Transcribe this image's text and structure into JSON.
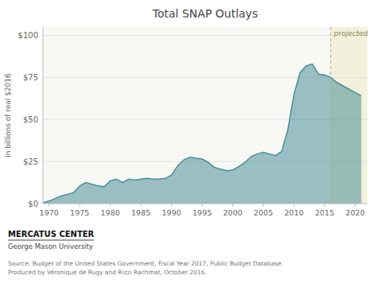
{
  "chart_data": {
    "type": "area",
    "title": "Total SNAP Outlays",
    "y_label": "in billions of real $2016",
    "x": [
      1969,
      1970,
      1971,
      1972,
      1973,
      1974,
      1975,
      1976,
      1977,
      1978,
      1979,
      1980,
      1981,
      1982,
      1983,
      1984,
      1985,
      1986,
      1987,
      1988,
      1989,
      1990,
      1991,
      1992,
      1993,
      1994,
      1995,
      1996,
      1997,
      1998,
      1999,
      2000,
      2001,
      2002,
      2003,
      2004,
      2005,
      2006,
      2007,
      2008,
      2009,
      2010,
      2011,
      2012,
      2013,
      2014,
      2015,
      2016,
      2017,
      2018,
      2019,
      2020,
      2021
    ],
    "values": [
      0.5,
      1.5,
      3.0,
      4.5,
      5.5,
      6.5,
      10.5,
      12.5,
      11.5,
      10.5,
      10.0,
      13.5,
      14.5,
      12.5,
      14.5,
      14.0,
      14.5,
      15.0,
      14.5,
      14.5,
      15.0,
      17.0,
      22.5,
      26.0,
      27.5,
      27.0,
      26.5,
      24.5,
      21.5,
      20.5,
      19.5,
      20.0,
      22.0,
      24.5,
      28.0,
      29.5,
      30.5,
      29.5,
      28.5,
      31.0,
      44.0,
      65.0,
      78.0,
      82.0,
      83.0,
      77.0,
      76.5,
      75.0,
      72.0,
      70.0,
      68.0,
      66.0,
      64.0
    ],
    "color": "#4a8f98",
    "xlim": [
      1969,
      2022
    ],
    "xticks": [
      1970,
      1975,
      1980,
      1985,
      1990,
      1995,
      2000,
      2005,
      2010,
      2015,
      2020
    ],
    "ylim": [
      0,
      105
    ],
    "yticks": [
      {
        "value": 0,
        "label": "$0"
      },
      {
        "value": 25,
        "label": "$25"
      },
      {
        "value": 50,
        "label": "$50"
      },
      {
        "value": 75,
        "label": "$75"
      },
      {
        "value": 100,
        "label": "$100"
      }
    ],
    "grid": true,
    "annotations": [
      {
        "text": "projected",
        "x": 2016
      }
    ],
    "source": "Source: Budget of the United States Government, Fiscal Year 2017, Public Budget Database.\nProduced by Véronique de Rugy and Rizzi Rachmat, October 2016.",
    "credits": [
      "MERCATUS CENTER",
      "George Mason University"
    ]
  }
}
